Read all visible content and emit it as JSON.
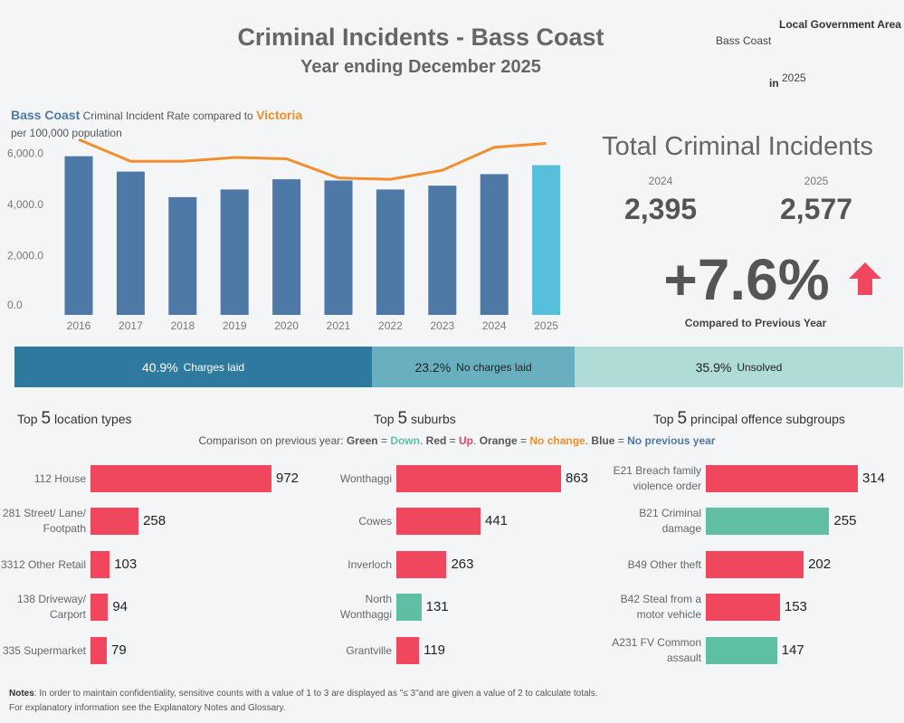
{
  "header": {
    "title": "Criminal Incidents - Bass Coast",
    "subtitle": "Year ending December 2025",
    "lga_label": "Local Government Area",
    "lga_value": "Bass Coast",
    "year_prefix": "in",
    "year_value": "2025"
  },
  "rate_chart": {
    "heading_lga": "Bass Coast",
    "heading_mid1": "Criminal Incident Rate",
    "heading_mid2": "compared to",
    "heading_vic": "Victoria",
    "unit": "per 100,000 population"
  },
  "totals": {
    "title": "Total Criminal Incidents",
    "prev_year": "2024",
    "prev_value": "2,395",
    "curr_year": "2025",
    "curr_value": "2,577",
    "change": "+7.6%",
    "compare_label": "Compared to Previous Year"
  },
  "outcomes": [
    {
      "pct": "40.9%",
      "label": "Charges laid"
    },
    {
      "pct": "23.2%",
      "label": "No charges laid"
    },
    {
      "pct": "35.9%",
      "label": "Unsolved"
    }
  ],
  "legend": {
    "prefix": "Comparison on previous year:",
    "green": "Green",
    "green_meaning": "Down",
    "red": "Red",
    "red_meaning": "Up",
    "orange": "Orange",
    "orange_meaning": "No change",
    "blue": "Blue",
    "blue_meaning": "No previous year"
  },
  "top_lists": [
    {
      "head_pre": "Top",
      "head_num": "5",
      "head_post": "location types"
    },
    {
      "head_pre": "Top",
      "head_num": "5",
      "head_post": "suburbs"
    },
    {
      "head_pre": "Top",
      "head_num": "5",
      "head_post": "principal offence subgroups"
    }
  ],
  "notes": {
    "label": "Notes",
    "line1": ":  In order to maintain confidentiality, sensitive counts with a value of 1 to 3  are displayed as \"≤ 3\"and are given a value of 2 to calculate totals.",
    "line2": "For explanatory information see the Explanatory Notes and Glossary."
  },
  "colors": {
    "lga_bar": "#4e79a7",
    "current_bar": "#56bfdb",
    "victoria_line": "#f28e2b",
    "up": "#f0475f",
    "down": "#5fbfa5"
  },
  "chart_data": [
    {
      "type": "bar",
      "categories": [
        "2016",
        "2017",
        "2018",
        "2019",
        "2020",
        "2021",
        "2022",
        "2023",
        "2024",
        "2025"
      ],
      "series": [
        {
          "name": "Bass Coast",
          "type": "bar",
          "values": [
            6200,
            5600,
            4600,
            4900,
            5300,
            5250,
            4900,
            5050,
            5500,
            5850
          ]
        },
        {
          "name": "Victoria",
          "type": "line",
          "values": [
            6850,
            6000,
            6000,
            6150,
            6100,
            5350,
            5300,
            5650,
            6550,
            6700
          ]
        }
      ],
      "yticks": [
        "0.0",
        "2,000.0",
        "4,000.0",
        "6,000.0"
      ],
      "ylim": [
        0,
        7000
      ]
    },
    {
      "type": "bar",
      "categories": [
        "112 House",
        "281 Street/ Lane/ Footpath",
        "3312 Other Retail",
        "138 Driveway/ Carport",
        "335 Supermarket"
      ],
      "values": [
        972,
        258,
        103,
        94,
        79
      ],
      "trend": [
        "up",
        "up",
        "up",
        "up",
        "up"
      ]
    },
    {
      "type": "bar",
      "categories": [
        "Wonthaggi",
        "Cowes",
        "Inverloch",
        "North Wonthaggi",
        "Grantville"
      ],
      "values": [
        863,
        441,
        263,
        131,
        119
      ],
      "trend": [
        "up",
        "up",
        "up",
        "down",
        "up"
      ]
    },
    {
      "type": "bar",
      "categories": [
        "E21 Breach family violence order",
        "B21 Criminal damage",
        "B49 Other theft",
        "B42 Steal from a motor vehicle",
        "A231 FV Common assault"
      ],
      "values": [
        314,
        255,
        202,
        153,
        147
      ],
      "trend": [
        "up",
        "down",
        "up",
        "up",
        "down"
      ]
    }
  ]
}
